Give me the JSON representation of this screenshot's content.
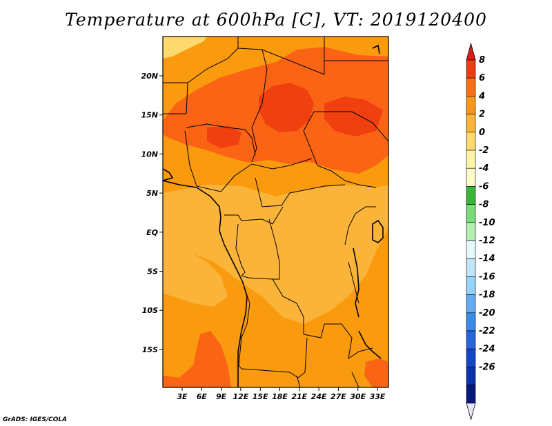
{
  "title": "Temperature at 600hPa [C], VT: 2019120400",
  "credit": "GrADS: IGES/COLA",
  "map": {
    "lon_ticks": [
      "3E",
      "6E",
      "9E",
      "12E",
      "15E",
      "18E",
      "21E",
      "24E",
      "27E",
      "30E",
      "33E"
    ],
    "lat_ticks": [
      "20N",
      "15N",
      "10N",
      "5N",
      "EQ",
      "5S",
      "10S",
      "15S"
    ],
    "fill_colors": {
      "t6_8": "#f04010",
      "t4_6": "#fa6414",
      "t2_4": "#fa9a0e",
      "t0_2": "#fbb43a",
      "tm2_0": "#ffd86e"
    }
  },
  "colorbar": {
    "labels": [
      "8",
      "6",
      "4",
      "2",
      "0",
      "-2",
      "-4",
      "-6",
      "-8",
      "-10",
      "-12",
      "-14",
      "-16",
      "-18",
      "-20",
      "-22",
      "-24",
      "-26"
    ],
    "top_arrow_color": "#e11c14",
    "colors": [
      "#f03c14",
      "#fa6e14",
      "#fa9616",
      "#fbb43a",
      "#ffd96e",
      "#fff4a8",
      "#fffac8",
      "#3cb43c",
      "#78dc78",
      "#b4f0b4",
      "#e6f8ff",
      "#c0e4f8",
      "#96d2fa",
      "#64aaf0",
      "#3c8ce6",
      "#2864dc",
      "#1446c8",
      "#0a32aa",
      "#06187a"
    ],
    "bottom_arrow_color": "#e6e6fa"
  }
}
